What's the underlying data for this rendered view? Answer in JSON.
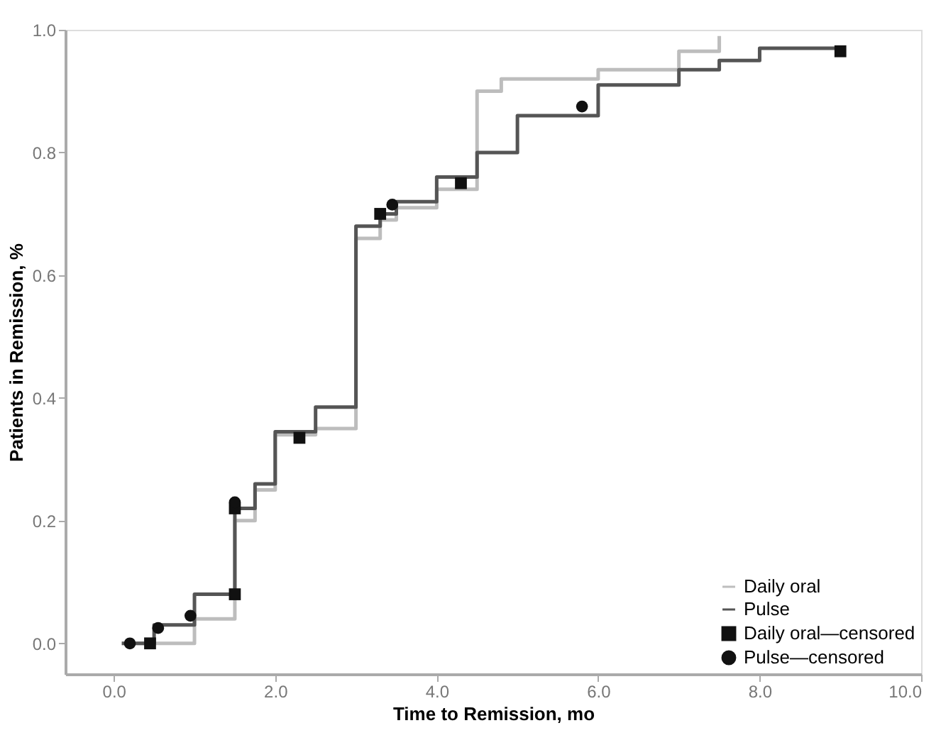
{
  "chart_data": {
    "type": "step",
    "xlabel": "Time to Remission, mo",
    "ylabel": "Patients in Remission, %",
    "xlim": [
      -0.6,
      10
    ],
    "ylim": [
      -0.05,
      1.0
    ],
    "xticks": [
      {
        "value": 0,
        "label": "0.0"
      },
      {
        "value": 2,
        "label": "2.0"
      },
      {
        "value": 4,
        "label": "4.0"
      },
      {
        "value": 6,
        "label": "6.0"
      },
      {
        "value": 8,
        "label": "8.0"
      },
      {
        "value": 10,
        "label": "10.0"
      }
    ],
    "yticks": [
      {
        "value": 0,
        "label": "0.0"
      },
      {
        "value": 0.2,
        "label": "0.2"
      },
      {
        "value": 0.4,
        "label": "0.4"
      },
      {
        "value": 0.6,
        "label": "0.6"
      },
      {
        "value": 0.8,
        "label": "0.8"
      },
      {
        "value": 1.0,
        "label": "1.0"
      }
    ],
    "grid": false,
    "legend": "bottom right",
    "series": [
      {
        "name": "Daily oral",
        "color": "#bdbdbd",
        "x": [
          0.1,
          0.5,
          1.0,
          1.5,
          1.75,
          2.0,
          2.5,
          3.0,
          3.3,
          3.5,
          4.0,
          4.5,
          4.8,
          6.0,
          7.0,
          7.5
        ],
        "values": [
          0.0,
          0.0,
          0.04,
          0.2,
          0.25,
          0.34,
          0.35,
          0.66,
          0.69,
          0.71,
          0.74,
          0.9,
          0.92,
          0.935,
          0.965,
          0.99
        ]
      },
      {
        "name": "Pulse",
        "color": "#555555",
        "x": [
          0.1,
          0.5,
          1.0,
          1.5,
          1.75,
          2.0,
          2.5,
          3.0,
          3.3,
          3.5,
          4.0,
          4.5,
          5.0,
          6.0,
          7.0,
          7.5,
          8.0,
          9.0
        ],
        "values": [
          0.0,
          0.03,
          0.08,
          0.22,
          0.26,
          0.345,
          0.385,
          0.68,
          0.7,
          0.72,
          0.76,
          0.8,
          0.86,
          0.91,
          0.935,
          0.95,
          0.97,
          0.97
        ]
      },
      {
        "name": "Daily oral—censored",
        "type": "scatter",
        "marker": "square",
        "color": "#111111",
        "x": [
          0.45,
          1.5,
          1.5,
          2.3,
          3.3,
          4.3,
          9.0
        ],
        "values": [
          0.0,
          0.08,
          0.22,
          0.335,
          0.7,
          0.75,
          0.965
        ]
      },
      {
        "name": "Pulse—censored",
        "type": "scatter",
        "marker": "circle",
        "color": "#111111",
        "x": [
          0.2,
          0.55,
          0.95,
          1.5,
          3.45,
          5.8
        ],
        "values": [
          0.0,
          0.025,
          0.045,
          0.23,
          0.715,
          0.875
        ]
      }
    ]
  }
}
